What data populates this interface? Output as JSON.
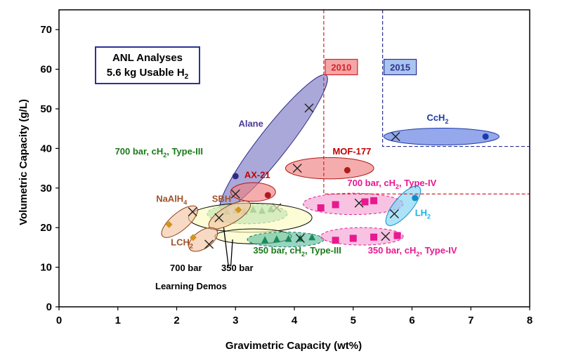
{
  "chart_data": {
    "type": "scatter",
    "xlabel": "Gravimetric Capacity (wt%)",
    "ylabel": "Volumetric Capacity (g/L)",
    "xlim": [
      0,
      8
    ],
    "ylim": [
      0,
      75
    ],
    "xticks": [
      0,
      1,
      2,
      3,
      4,
      5,
      6,
      7,
      8
    ],
    "yticks": [
      0,
      10,
      20,
      30,
      40,
      50,
      60,
      70
    ],
    "grid": false,
    "annotation_box": {
      "line1": "ANL Analyses",
      "line2_prefix": "5.6 kg Usable H",
      "line2_sub": "2"
    },
    "targets": [
      {
        "label": "2010",
        "x": 4.5,
        "y": 28.5,
        "color": "#d2232a",
        "fill": "#f4a6a6"
      },
      {
        "label": "2015",
        "x": 5.5,
        "y": 40.5,
        "color": "#2e3192",
        "fill": "#a9c4ef"
      }
    ],
    "regions": [
      {
        "name": "Alane",
        "cx": 3.65,
        "cy": 41.5,
        "rx": 1.45,
        "ry": 0.32,
        "angle_deg": -52,
        "fill": "#7d79c4",
        "stroke": "#2e2a86",
        "label": "Alane",
        "label_color": "#4b3a9a",
        "label_x": 3.05,
        "label_y": 45.5,
        "points": [
          {
            "x": 4.25,
            "y": 50.2,
            "m": "x"
          },
          {
            "x": 3.0,
            "y": 33.0,
            "m": "dot"
          }
        ]
      },
      {
        "name": "CcH2",
        "cx": 6.5,
        "cy": 43,
        "rx": 0.98,
        "ry": 0.13,
        "angle_deg": 0,
        "fill": "#5b79e0",
        "stroke": "#1c3aa9",
        "label": "CcH",
        "label_sub": "2",
        "label_color": "#1c3aa9",
        "label_x": 6.25,
        "label_y": 47,
        "points": [
          {
            "x": 5.72,
            "y": 43,
            "m": "x"
          },
          {
            "x": 7.25,
            "y": 43,
            "m": "dot"
          }
        ]
      },
      {
        "name": "MOF-177",
        "cx": 4.6,
        "cy": 35,
        "rx": 0.75,
        "ry": 0.2,
        "angle_deg": 0,
        "fill": "#f08080",
        "stroke": "#b11a1a",
        "label": "MOF-177",
        "label_color": "#c00000",
        "label_x": 4.65,
        "label_y": 38.5,
        "points": [
          {
            "x": 4.05,
            "y": 35,
            "m": "x"
          },
          {
            "x": 4.9,
            "y": 34.5,
            "m": "dot"
          }
        ]
      },
      {
        "name": "AX-21",
        "cx": 3.3,
        "cy": 29,
        "rx": 0.38,
        "ry": 0.16,
        "angle_deg": 0,
        "fill": "#f08080",
        "stroke": "#b11a1a",
        "label": "AX-21",
        "label_color": "#c00000",
        "label_x": 3.15,
        "label_y": 32.5,
        "points": [
          {
            "x": 3.0,
            "y": 28.5,
            "m": "x"
          },
          {
            "x": 3.55,
            "y": 28.2,
            "m": "dot"
          }
        ]
      },
      {
        "name": "700 bar cH2 Type-III",
        "cx": 3.2,
        "cy": 23.5,
        "rx": 0.68,
        "ry": 0.18,
        "angle_deg": 0,
        "fill": "#5fbf9f",
        "stroke": "#0c7a5a",
        "dashed": true,
        "label": "700 bar, cH",
        "label_sub": "2",
        "label_tail": ", Type-III",
        "label_color": "#1a7a1a",
        "label_x": 0.95,
        "label_y": 38.5,
        "points": [
          {
            "x": 2.85,
            "y": 24.0,
            "m": "tri"
          },
          {
            "x": 3.0,
            "y": 24.3,
            "m": "tri"
          },
          {
            "x": 3.15,
            "y": 24.0,
            "m": "tri"
          },
          {
            "x": 3.3,
            "y": 24.5,
            "m": "tri"
          },
          {
            "x": 3.45,
            "y": 24.2,
            "m": "tri"
          },
          {
            "x": 3.6,
            "y": 24.6,
            "m": "tri"
          },
          {
            "x": 3.7,
            "y": 25.0,
            "m": "x"
          }
        ]
      },
      {
        "name": "700 bar cH2 Type-IV",
        "cx": 5.0,
        "cy": 26,
        "rx": 0.85,
        "ry": 0.2,
        "angle_deg": 0,
        "fill": "#f5a3d4",
        "stroke": "#e8188f",
        "dashed": true,
        "label": "700 bar, cH",
        "label_sub": "2",
        "label_tail": ", Type-IV",
        "label_color": "#e8188f",
        "label_x": 4.9,
        "label_y": 30.5,
        "points": [
          {
            "x": 4.45,
            "y": 25,
            "m": "sq"
          },
          {
            "x": 4.7,
            "y": 25.8,
            "m": "sq"
          },
          {
            "x": 5.1,
            "y": 26.2,
            "m": "x"
          },
          {
            "x": 5.35,
            "y": 26.8,
            "m": "sq"
          },
          {
            "x": 5.2,
            "y": 26.5,
            "m": "sq"
          }
        ]
      },
      {
        "name": "LH2",
        "cx": 5.85,
        "cy": 25.5,
        "rx": 0.42,
        "ry": 0.15,
        "angle_deg": -50,
        "fill": "#7fd4f5",
        "stroke": "#0c8ec9",
        "label": "LH",
        "label_sub": "2",
        "label_color": "#1ab2ea",
        "label_x": 6.05,
        "label_y": 23,
        "points": [
          {
            "x": 5.7,
            "y": 23.5,
            "m": "x"
          },
          {
            "x": 6.05,
            "y": 27.5,
            "m": "dot"
          }
        ]
      },
      {
        "name": "Learning Demos 700 bar",
        "cx": 3.25,
        "cy": 22.5,
        "rx": 1.05,
        "ry": 0.32,
        "angle_deg": 0,
        "fill": "#fafabe",
        "stroke": "#000000",
        "points": []
      },
      {
        "name": "Learning Demos 350 bar",
        "cx": 3.3,
        "cy": 17.8,
        "rx": 0.65,
        "ry": 0.1,
        "angle_deg": 0,
        "fill": "#fafabe",
        "stroke": "#000000",
        "points": []
      },
      {
        "name": "NaAlH4",
        "cx": 2.05,
        "cy": 21.5,
        "rx": 0.38,
        "ry": 0.14,
        "angle_deg": -40,
        "fill": "#f2c4a4",
        "stroke": "#8b4513",
        "label": "NaAlH",
        "label_sub": "4",
        "label_color": "#a0522d",
        "label_x": 1.65,
        "label_y": 26.5,
        "points": [
          {
            "x": 2.27,
            "y": 24.0,
            "m": "x"
          },
          {
            "x": 1.87,
            "y": 20.8,
            "m": "dia"
          }
        ]
      },
      {
        "name": "SBH",
        "cx": 2.9,
        "cy": 23.2,
        "rx": 0.4,
        "ry": 0.14,
        "angle_deg": -30,
        "fill": "#f2c4a4",
        "stroke": "#8b4513",
        "label": "SBH",
        "label_color": "#a0522d",
        "label_x": 2.6,
        "label_y": 26.5,
        "points": [
          {
            "x": 2.72,
            "y": 22.5,
            "m": "x"
          },
          {
            "x": 3.05,
            "y": 24.5,
            "m": "dia"
          }
        ]
      },
      {
        "name": "LCH2",
        "cx": 2.45,
        "cy": 17.0,
        "rx": 0.28,
        "ry": 0.14,
        "angle_deg": -35,
        "fill": "#f2c4a4",
        "stroke": "#8b4513",
        "label": "LCH",
        "label_sub": "2",
        "label_color": "#a0522d",
        "label_x": 1.9,
        "label_y": 15.5,
        "points": [
          {
            "x": 2.55,
            "y": 15.8,
            "m": "x"
          },
          {
            "x": 2.28,
            "y": 17.5,
            "m": "dia"
          }
        ]
      },
      {
        "name": "350 bar cH2 Type-III",
        "cx": 3.85,
        "cy": 17.0,
        "rx": 0.65,
        "ry": 0.1,
        "angle_deg": 0,
        "fill": "#5fbf9f",
        "stroke": "#0c7a5a",
        "dashed": true,
        "label": "350 bar, cH",
        "label_sub": "2",
        "label_tail": ", Type-III",
        "label_color": "#1a7a1a",
        "label_x": 3.3,
        "label_y": 13.5,
        "points": [
          {
            "x": 3.5,
            "y": 16.8,
            "m": "tri"
          },
          {
            "x": 3.7,
            "y": 17.0,
            "m": "tri"
          },
          {
            "x": 3.9,
            "y": 17.1,
            "m": "tri"
          },
          {
            "x": 4.1,
            "y": 17.2,
            "m": "tri"
          },
          {
            "x": 4.3,
            "y": 17.5,
            "m": "tri"
          },
          {
            "x": 4.1,
            "y": 17.3,
            "m": "x"
          }
        ]
      },
      {
        "name": "350 bar cH2 Type-IV",
        "cx": 5.15,
        "cy": 17.8,
        "rx": 0.7,
        "ry": 0.14,
        "angle_deg": 0,
        "fill": "#f5a3d4",
        "stroke": "#e8188f",
        "dashed": true,
        "label": "350 bar, cH",
        "label_sub": "2",
        "label_tail": ", Type-IV",
        "label_color": "#e8188f",
        "label_x": 5.25,
        "label_y": 13.5,
        "points": [
          {
            "x": 4.7,
            "y": 16.8,
            "m": "sq"
          },
          {
            "x": 5.0,
            "y": 17.3,
            "m": "sq"
          },
          {
            "x": 5.35,
            "y": 17.6,
            "m": "sq"
          },
          {
            "x": 5.55,
            "y": 17.8,
            "m": "x"
          },
          {
            "x": 5.75,
            "y": 18.0,
            "m": "sq"
          }
        ]
      }
    ],
    "demo_labels": {
      "left": "700 bar",
      "right": "350 bar",
      "bottom": "Learning Demos"
    }
  }
}
